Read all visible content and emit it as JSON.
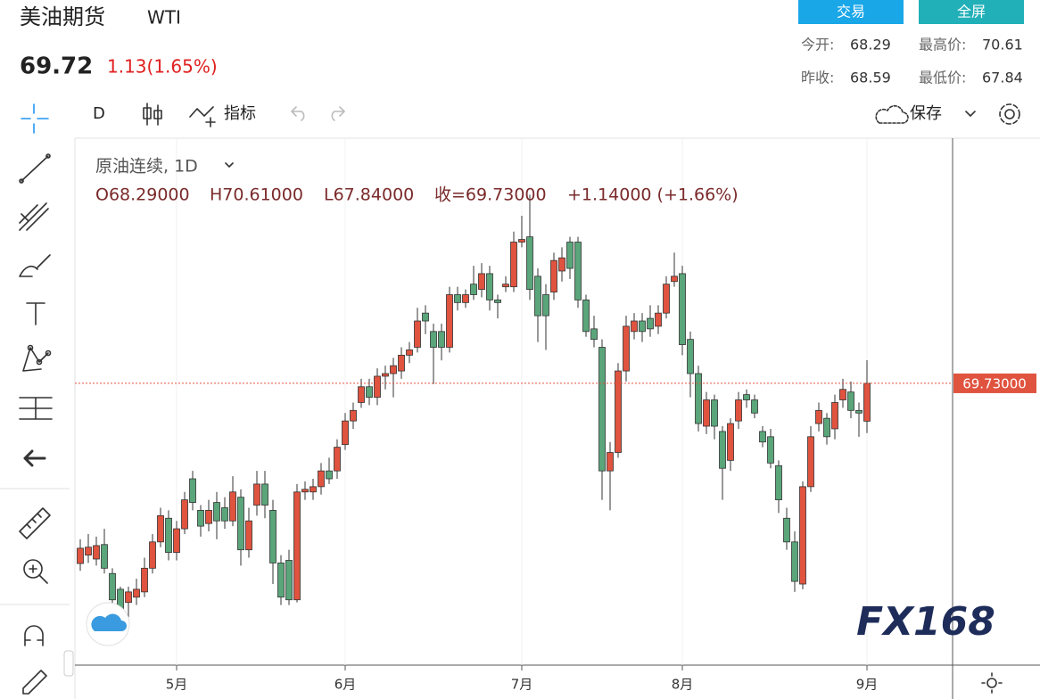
{
  "header": {
    "title": "美油期货",
    "symbol": "WTI",
    "price": "69.72",
    "change": "1.13(1.65%)"
  },
  "buttons": [
    "交易",
    "全屏"
  ],
  "stats": [
    {
      "label": "今开:",
      "value": "68.29"
    },
    {
      "label": "最高价:",
      "value": "70.61"
    },
    {
      "label": "昨收:",
      "value": "68.59"
    },
    {
      "label": "最低价:",
      "value": "67.84"
    }
  ],
  "toolbar": {
    "interval": "D",
    "indicators": "指标",
    "save": "保存"
  },
  "chart_data": {
    "type": "candlestick",
    "title": "原油连续, 1D",
    "ohlc_legend": [
      "O68.29000",
      "H70.61000",
      "L67.84000",
      "收=69.73000",
      "+1.14000 (+1.66%)"
    ],
    "categories": [
      null,
      null,
      null,
      null,
      null,
      null,
      null,
      null,
      null,
      null,
      null,
      null,
      "5月",
      null,
      null,
      null,
      null,
      null,
      null,
      null,
      null,
      null,
      null,
      null,
      null,
      null,
      null,
      null,
      null,
      null,
      null,
      null,
      null,
      "6月",
      null,
      null,
      null,
      null,
      null,
      null,
      null,
      null,
      null,
      null,
      null,
      null,
      null,
      null,
      null,
      null,
      null,
      null,
      null,
      null,
      null,
      "7月",
      null,
      null,
      null,
      null,
      null,
      null,
      null,
      null,
      null,
      null,
      null,
      null,
      null,
      null,
      null,
      null,
      null,
      null,
      null,
      "8月",
      null,
      null,
      null,
      null,
      null,
      null,
      null,
      null,
      null,
      null,
      null,
      null,
      null,
      null,
      null,
      null,
      null,
      null,
      null,
      null,
      null,
      null,
      "9月"
    ],
    "open": [
      62.88,
      63.2,
      63.05,
      63.6,
      62.5,
      61.9,
      61.4,
      61.6,
      61.8,
      62.7,
      63.7,
      64.6,
      63.3,
      64.2,
      66.1,
      64.9,
      64.4,
      65.2,
      65.0,
      64.5,
      65.4,
      63.4,
      65.1,
      65.9,
      64.9,
      62.9,
      63.0,
      61.5,
      65.6,
      65.6,
      65.8,
      66.4,
      66.4,
      67.4,
      68.3,
      69.0,
      69.6,
      69.2,
      70.0,
      70.1,
      70.2,
      70.8,
      71.1,
      72.4,
      71.7,
      71.7,
      71.1,
      73.1,
      72.8,
      73.5,
      73.3,
      73.9,
      72.9,
      73.4,
      73.4,
      75.1,
      75.3,
      73.8,
      73.1,
      73.2,
      74.0,
      75.1,
      75.1,
      72.9,
      71.8,
      71.1,
      66.4,
      67.1,
      70.2,
      71.7,
      72.1,
      72.2,
      71.9,
      72.4,
      73.6,
      73.9,
      71.4,
      70.1,
      68.1,
      69.1,
      67.9,
      66.8,
      68.3,
      69.3,
      69.1,
      67.9,
      67.7,
      66.6,
      64.6,
      63.7,
      62.1,
      65.8,
      68.2,
      68.4,
      68.0,
      69.1,
      69.4,
      68.7,
      68.29
    ],
    "high": [
      63.8,
      64.0,
      63.9,
      64.2,
      62.7,
      62.0,
      62.0,
      62.3,
      63.1,
      64.0,
      65.0,
      64.9,
      64.5,
      65.6,
      66.4,
      65.1,
      65.3,
      65.6,
      65.4,
      66.2,
      65.7,
      65.0,
      66.4,
      66.4,
      65.3,
      63.2,
      63.4,
      65.9,
      66.0,
      66.1,
      66.7,
      66.9,
      67.6,
      68.6,
      69.0,
      69.9,
      69.9,
      70.3,
      70.4,
      70.7,
      71.1,
      71.3,
      72.6,
      72.7,
      72.0,
      72.0,
      73.4,
      73.4,
      73.3,
      74.2,
      74.3,
      74.2,
      73.1,
      73.8,
      75.5,
      76.1,
      76.9,
      74.1,
      73.5,
      74.7,
      74.9,
      75.3,
      75.3,
      73.1,
      72.3,
      71.4,
      67.5,
      70.5,
      72.3,
      72.4,
      72.4,
      72.7,
      72.7,
      73.8,
      74.7,
      74.2,
      71.7,
      70.4,
      69.4,
      69.3,
      68.1,
      68.4,
      69.4,
      69.5,
      69.3,
      68.1,
      68.0,
      66.8,
      65.0,
      64.1,
      66.0,
      68.1,
      69.0,
      68.6,
      69.3,
      69.9,
      69.8,
      69.0,
      70.61
    ],
    "low": [
      62.6,
      62.9,
      62.8,
      62.5,
      61.1,
      60.6,
      60.8,
      61.3,
      61.6,
      62.5,
      63.5,
      63.0,
      63.0,
      64.0,
      64.9,
      63.9,
      64.1,
      63.8,
      64.2,
      64.3,
      62.8,
      63.1,
      64.7,
      64.6,
      62.1,
      61.3,
      61.3,
      61.4,
      65.3,
      65.3,
      65.5,
      65.9,
      66.1,
      67.2,
      68.0,
      68.8,
      68.9,
      68.9,
      69.5,
      69.2,
      69.9,
      70.5,
      70.9,
      71.6,
      69.7,
      70.6,
      70.9,
      72.5,
      72.6,
      72.9,
      73.0,
      72.5,
      72.2,
      73.2,
      73.2,
      74.9,
      72.9,
      71.3,
      71.0,
      72.9,
      73.6,
      73.7,
      72.6,
      71.5,
      71.1,
      65.3,
      64.9,
      66.9,
      69.8,
      71.4,
      71.3,
      71.5,
      71.6,
      72.2,
      73.4,
      70.8,
      69.2,
      67.9,
      67.8,
      67.6,
      65.3,
      66.4,
      68.0,
      68.8,
      68.4,
      67.3,
      66.5,
      64.8,
      63.4,
      61.8,
      61.9,
      65.6,
      67.9,
      67.4,
      67.6,
      68.8,
      68.4,
      67.7,
      67.84
    ],
    "close": [
      63.46,
      63.5,
      63.56,
      62.7,
      61.5,
      61.1,
      61.8,
      61.9,
      62.7,
      63.7,
      64.7,
      63.3,
      64.2,
      65.3,
      65.2,
      64.3,
      64.9,
      64.5,
      64.5,
      65.6,
      63.4,
      64.5,
      65.9,
      65.1,
      62.9,
      61.6,
      61.5,
      65.6,
      65.7,
      65.8,
      66.4,
      66.1,
      67.3,
      68.3,
      68.7,
      69.6,
      69.2,
      70.0,
      70.1,
      70.4,
      70.8,
      71.0,
      72.1,
      72.1,
      71.1,
      71.1,
      73.1,
      72.8,
      73.1,
      73.1,
      73.9,
      72.9,
      72.8,
      73.5,
      75.1,
      75.2,
      73.3,
      72.3,
      72.3,
      74.4,
      74.5,
      74.1,
      72.9,
      71.7,
      71.4,
      66.4,
      67.1,
      70.2,
      71.9,
      72.1,
      71.7,
      71.8,
      72.4,
      73.5,
      73.8,
      71.2,
      70.1,
      68.2,
      69.1,
      68.1,
      66.5,
      68.2,
      69.1,
      69.1,
      68.6,
      67.5,
      66.7,
      65.3,
      63.7,
      62.2,
      65.8,
      67.7,
      68.7,
      67.7,
      69.0,
      69.5,
      68.7,
      68.6,
      69.73
    ],
    "ylim": [
      59.05,
      78.88
    ],
    "last_price": {
      "value": 69.73,
      "label": "69.73000"
    },
    "up_color": "#e0533f",
    "down_color": "#5aa57a",
    "watermark": "FX168"
  }
}
